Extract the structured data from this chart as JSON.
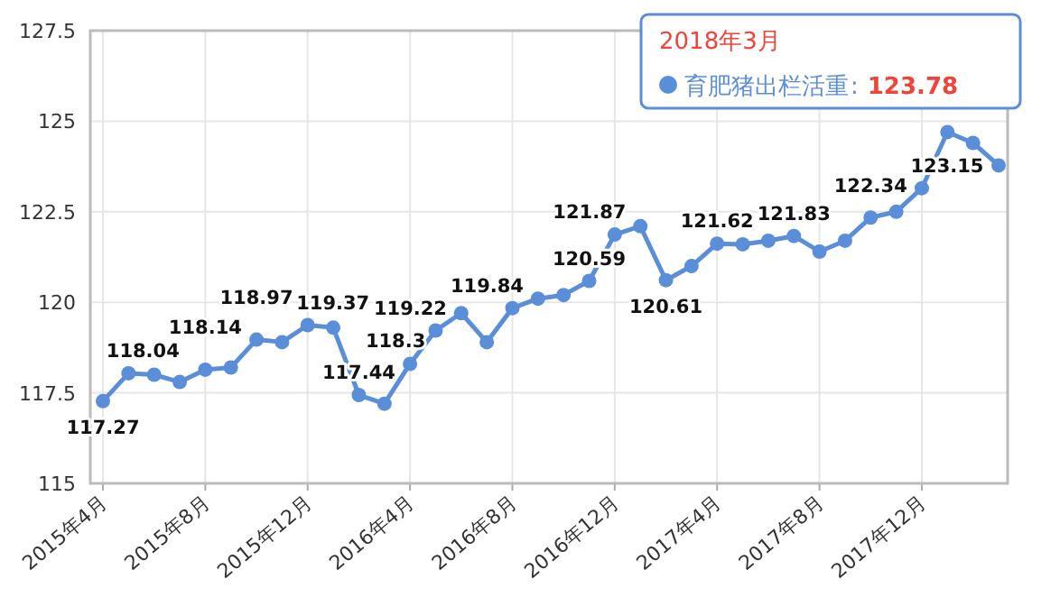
{
  "chart_data": {
    "type": "line",
    "categories": [
      "2015年4月",
      null,
      null,
      null,
      "2015年8月",
      null,
      null,
      null,
      "2015年12月",
      null,
      null,
      null,
      "2016年4月",
      null,
      null,
      null,
      "2016年8月",
      null,
      null,
      null,
      "2016年12月",
      null,
      null,
      null,
      "2017年4月",
      null,
      null,
      null,
      "2017年8月",
      null,
      null,
      null,
      "2017年12月",
      null,
      null,
      null
    ],
    "series": [
      {
        "name": "育肥猪出栏活重",
        "color": "#5b8ed8",
        "values": [
          117.27,
          118.04,
          118.0,
          117.8,
          118.14,
          118.2,
          118.97,
          118.9,
          119.37,
          119.3,
          117.44,
          117.2,
          118.3,
          119.22,
          119.7,
          118.9,
          119.84,
          120.1,
          120.2,
          120.59,
          121.87,
          122.1,
          120.61,
          121.0,
          121.62,
          121.6,
          121.7,
          121.83,
          121.4,
          121.7,
          122.34,
          122.5,
          123.15,
          124.7,
          124.4,
          123.78
        ],
        "value_labels": [
          "117.27",
          "118.04",
          null,
          null,
          "118.14",
          null,
          "118.97",
          null,
          "119.37",
          null,
          "117.44",
          null,
          "118.3",
          "119.22",
          null,
          null,
          "119.84",
          null,
          null,
          "120.59",
          "121.87",
          null,
          "120.61",
          null,
          "121.62",
          null,
          null,
          "121.83",
          null,
          null,
          "122.34",
          null,
          "123.15",
          null,
          null,
          null
        ]
      }
    ],
    "annotations": [
      "2018年3月",
      ":",
      "123.78"
    ],
    "ylim": [
      115,
      127.5
    ],
    "yticks": [
      115,
      117.5,
      120,
      122.5,
      125,
      127.5
    ],
    "grid": true,
    "marker": "circle"
  }
}
